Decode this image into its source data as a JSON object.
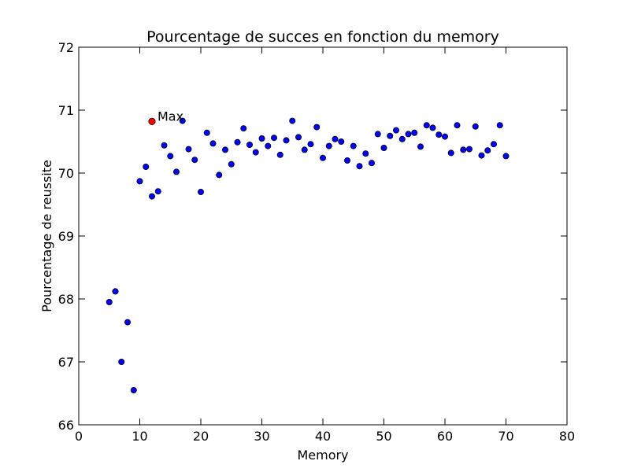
{
  "chart_data": {
    "type": "scatter",
    "title": "Pourcentage de succes en fonction du memory",
    "xlabel": "Memory",
    "ylabel": "Pourcentage de reussite",
    "xlim": [
      0,
      80
    ],
    "ylim": [
      66,
      72
    ],
    "xticks": [
      "0",
      "10",
      "20",
      "30",
      "40",
      "50",
      "60",
      "70",
      "80"
    ],
    "yticks": [
      "66",
      "67",
      "68",
      "69",
      "70",
      "71",
      "72"
    ],
    "grid": false,
    "marker_color": "#0000ff",
    "highlight_color": "#ff0000",
    "series": [
      {
        "x": [
          5,
          6,
          7,
          8,
          9,
          10,
          11,
          12,
          13,
          14,
          15,
          16,
          17,
          18,
          19,
          20,
          21,
          22,
          23,
          24,
          25,
          26,
          27,
          28,
          29,
          30,
          31,
          32,
          33,
          34,
          35,
          36,
          37,
          38,
          39,
          40,
          41,
          42,
          43,
          44,
          45,
          46,
          47,
          48,
          49,
          50,
          51,
          52,
          53,
          54,
          55,
          56,
          57,
          58,
          59,
          60,
          61,
          62,
          63,
          64,
          65,
          66,
          67,
          68,
          69,
          70
        ],
        "y": [
          67.95,
          68.12,
          67.0,
          67.63,
          66.55,
          69.87,
          70.1,
          69.63,
          69.71,
          70.44,
          70.27,
          70.02,
          70.83,
          70.38,
          70.21,
          69.7,
          70.64,
          70.47,
          69.97,
          70.37,
          70.14,
          70.49,
          70.71,
          70.45,
          70.33,
          70.55,
          70.43,
          70.56,
          70.29,
          70.52,
          70.83,
          70.57,
          70.37,
          70.46,
          70.73,
          70.24,
          70.43,
          70.54,
          70.5,
          70.2,
          70.43,
          70.11,
          70.31,
          70.16,
          70.62,
          70.4,
          70.59,
          70.68,
          70.54,
          70.62,
          70.64,
          70.42,
          70.76,
          70.72,
          70.61,
          70.58,
          70.32,
          70.76,
          70.37,
          70.38,
          70.74,
          70.28,
          70.36,
          70.46,
          70.76,
          70.27
        ]
      }
    ],
    "annotations": [
      {
        "label": "Max",
        "x": 12,
        "y": 70.82
      }
    ]
  }
}
